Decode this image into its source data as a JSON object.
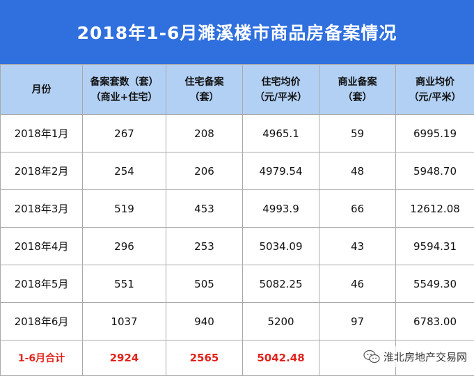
{
  "title": "2018年1-6月濉溪楼市商品房备案情况",
  "table": {
    "headers": [
      [
        "月份"
      ],
      [
        "备案套数（套）",
        "（商业+住宅）"
      ],
      [
        "住宅备案",
        "（套）"
      ],
      [
        "住宅均价",
        "（元/平米）"
      ],
      [
        "商业备案",
        "（套）"
      ],
      [
        "商业均价",
        "（元/平米）"
      ]
    ],
    "rows": [
      [
        "2018年1月",
        "267",
        "208",
        "4965.1",
        "59",
        "6995.19"
      ],
      [
        "2018年2月",
        "254",
        "206",
        "4979.54",
        "48",
        "5948.70"
      ],
      [
        "2018年3月",
        "519",
        "453",
        "4993.9",
        "66",
        "12612.08"
      ],
      [
        "2018年4月",
        "296",
        "253",
        "5034.09",
        "43",
        "9594.31"
      ],
      [
        "2018年5月",
        "551",
        "505",
        "5082.25",
        "46",
        "5549.30"
      ],
      [
        "2018年6月",
        "1037",
        "940",
        "5200",
        "97",
        "6783.00"
      ]
    ],
    "total": [
      "1-6月合计",
      "2924",
      "2565",
      "5042.48",
      "",
      ""
    ]
  },
  "watermark": {
    "label": "淮北房地产交易网",
    "icon": "wechat-icon"
  },
  "colors": {
    "title_bg": "#2f6fde",
    "header_bg": "#b2d0f3",
    "total_text": "#e0231b",
    "border": "#a9a9a9"
  }
}
